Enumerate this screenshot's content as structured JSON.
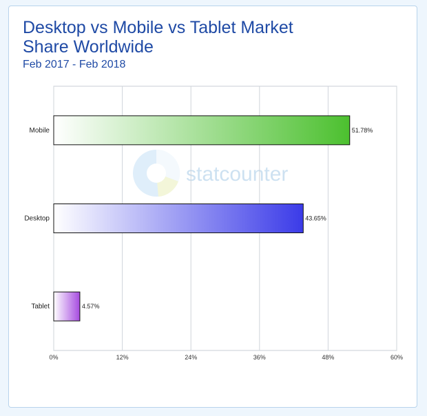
{
  "chart_data": {
    "type": "bar",
    "orientation": "horizontal",
    "title": "Desktop vs Mobile vs Tablet Market Share Worldwide",
    "subtitle": "Feb 2017 - Feb 2018",
    "categories": [
      "Mobile",
      "Desktop",
      "Tablet"
    ],
    "values": [
      51.78,
      43.65,
      4.57
    ],
    "value_labels": [
      "51.78%",
      "43.65%",
      "4.57%"
    ],
    "colors": [
      "#4cc02f",
      "#3b3be8",
      "#a64be0"
    ],
    "xlim": [
      0,
      60
    ],
    "xticks": [
      0,
      12,
      24,
      36,
      48,
      60
    ],
    "xtick_labels": [
      "0%",
      "12%",
      "24%",
      "36%",
      "48%",
      "60%"
    ],
    "grid": true,
    "watermark": "statcounter"
  }
}
